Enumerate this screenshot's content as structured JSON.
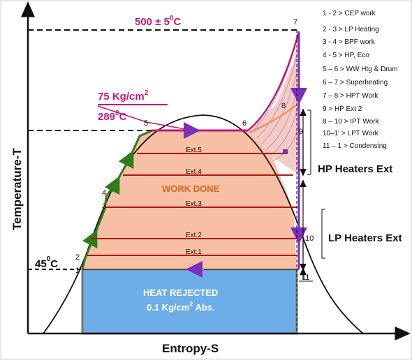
{
  "axes": {
    "y_label": "Temperature-T",
    "x_label": "Entropy-S"
  },
  "annotations": {
    "top_temp": "500 ± 5",
    "top_temp_unit": "C",
    "top_temp_sup": "0",
    "pressure": "75 Kg/cm",
    "pressure_sup": "2",
    "sat_temp": "289",
    "sat_temp_sup": "0",
    "sat_temp_unit": "C",
    "low_temp": "45",
    "low_temp_sup": "0",
    "low_temp_unit": "C",
    "work_done": "WORK DONE",
    "heat_rejected_line1": "HEAT REJECTED",
    "heat_rejected_line2_a": "0.1 Kg/cm",
    "heat_rejected_line2_sup": "2",
    "heat_rejected_line2_b": " Abs.",
    "hp_heaters": "HP Heaters Ext",
    "lp_heaters": "LP Heaters Ext"
  },
  "points": {
    "p1": "1",
    "p2": "2",
    "p3": "3",
    "p4": "4",
    "p5": "5",
    "p6": "6",
    "p7": "7",
    "p8": "8",
    "p9": "9",
    "p10": "10",
    "p11": "11"
  },
  "extractions": [
    "Ext.5",
    "Ext.4",
    "Ext.3",
    "Ext.2",
    "Ext.1"
  ],
  "legend": [
    "1 - 2 > CEP work",
    "2 - 3 > LP Heating",
    "3 - 4 > BPF work",
    "4 - 5 > HP, Eco",
    "5 – 6 > WW Htg & Drum",
    "6 – 7 > Superheating",
    "7 – 8 > HPT Work",
    "9 > HP Ext 2",
    "8 – 10 > IPT Work",
    "10–1' > LPT Work",
    "11 – 1 > Condensing"
  ],
  "colors": {
    "work_fill": "#f7bfa3",
    "heat_fill": "#6eaee8",
    "feed_line": "#2e7d1a",
    "superheat": "#c2187a",
    "expansion": "#7b2fbf",
    "ext_line": "#b01818"
  }
}
